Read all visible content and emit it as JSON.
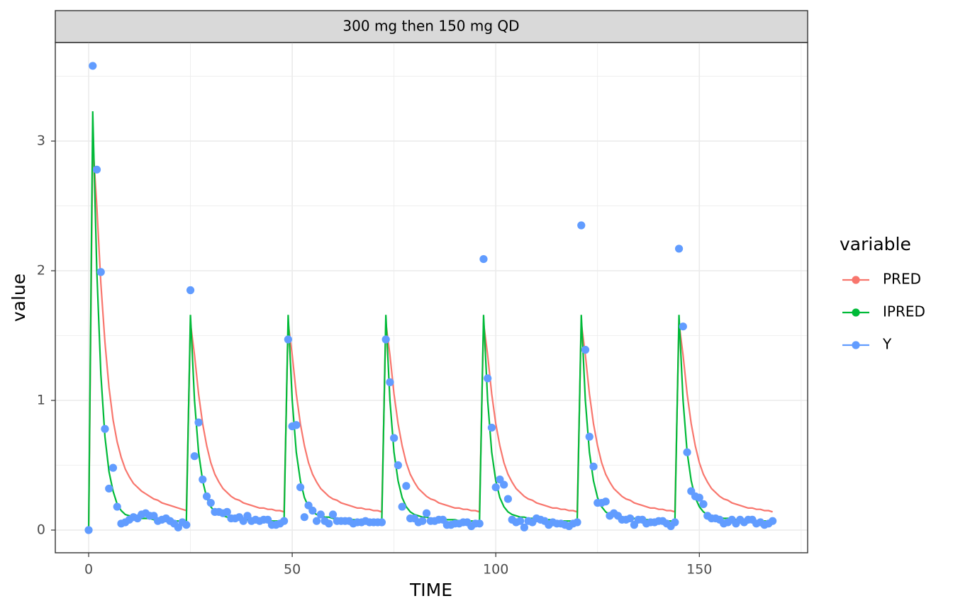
{
  "chart_data": {
    "type": "line",
    "facet_label": "300 mg then 150 mg QD",
    "x_label": "TIME",
    "y_label": "value",
    "legend_title": "variable",
    "legend_position": "right",
    "grid": true,
    "xlim": [
      -8.19,
      176.6
    ],
    "ylim": [
      -0.175,
      3.76
    ],
    "xticks": [
      0,
      50,
      100,
      150
    ],
    "yticks": [
      0,
      1,
      2,
      3
    ],
    "x_minor_breaks": [
      25,
      75,
      125,
      175
    ],
    "y_minor_breaks": [
      0.5,
      1.5,
      2.5,
      3.5
    ],
    "x": [
      0,
      1,
      2,
      3,
      4,
      5,
      6,
      7,
      8,
      9,
      10,
      11,
      12,
      13,
      14,
      15,
      16,
      17,
      18,
      19,
      20,
      21,
      22,
      23,
      24,
      25,
      26,
      27,
      28,
      29,
      30,
      31,
      32,
      33,
      34,
      35,
      36,
      37,
      38,
      39,
      40,
      41,
      42,
      43,
      44,
      45,
      46,
      47,
      48,
      49,
      50,
      51,
      52,
      53,
      54,
      55,
      56,
      57,
      58,
      59,
      60,
      61,
      62,
      63,
      64,
      65,
      66,
      67,
      68,
      69,
      70,
      71,
      72,
      73,
      74,
      75,
      76,
      77,
      78,
      79,
      80,
      81,
      82,
      83,
      84,
      85,
      86,
      87,
      88,
      89,
      90,
      91,
      92,
      93,
      94,
      95,
      96,
      97,
      98,
      99,
      100,
      101,
      102,
      103,
      104,
      105,
      106,
      107,
      108,
      109,
      110,
      111,
      112,
      113,
      114,
      115,
      116,
      117,
      118,
      119,
      120,
      121,
      122,
      123,
      124,
      125,
      126,
      127,
      128,
      129,
      130,
      131,
      132,
      133,
      134,
      135,
      136,
      137,
      138,
      139,
      140,
      141,
      142,
      143,
      144,
      145,
      146,
      147,
      148,
      149,
      150,
      151,
      152,
      153,
      154,
      155,
      156,
      157,
      158,
      159,
      160,
      161,
      162,
      163,
      164,
      165,
      166,
      167,
      168
    ],
    "series": [
      {
        "name": "PRED",
        "color": "#F8766D",
        "mode": "lines",
        "values": [
          0,
          3.0,
          2.5,
          1.9,
          1.45,
          1.1,
          0.85,
          0.68,
          0.56,
          0.47,
          0.41,
          0.36,
          0.33,
          0.3,
          0.28,
          0.26,
          0.24,
          0.23,
          0.21,
          0.2,
          0.19,
          0.18,
          0.17,
          0.16,
          0.15,
          1.6,
          1.35,
          1.05,
          0.82,
          0.65,
          0.52,
          0.43,
          0.37,
          0.32,
          0.29,
          0.26,
          0.24,
          0.23,
          0.21,
          0.2,
          0.19,
          0.18,
          0.17,
          0.17,
          0.16,
          0.16,
          0.15,
          0.15,
          0.14,
          1.6,
          1.35,
          1.05,
          0.82,
          0.65,
          0.52,
          0.43,
          0.37,
          0.32,
          0.29,
          0.26,
          0.24,
          0.23,
          0.21,
          0.2,
          0.19,
          0.18,
          0.17,
          0.17,
          0.16,
          0.16,
          0.15,
          0.15,
          0.14,
          1.6,
          1.35,
          1.05,
          0.82,
          0.65,
          0.52,
          0.43,
          0.37,
          0.32,
          0.29,
          0.26,
          0.24,
          0.23,
          0.21,
          0.2,
          0.19,
          0.18,
          0.17,
          0.17,
          0.16,
          0.16,
          0.15,
          0.15,
          0.14,
          1.6,
          1.35,
          1.05,
          0.82,
          0.65,
          0.52,
          0.43,
          0.37,
          0.32,
          0.29,
          0.26,
          0.24,
          0.23,
          0.21,
          0.2,
          0.19,
          0.18,
          0.17,
          0.17,
          0.16,
          0.16,
          0.15,
          0.15,
          0.14,
          1.6,
          1.35,
          1.05,
          0.82,
          0.65,
          0.52,
          0.43,
          0.37,
          0.32,
          0.29,
          0.26,
          0.24,
          0.23,
          0.21,
          0.2,
          0.19,
          0.18,
          0.17,
          0.17,
          0.16,
          0.16,
          0.15,
          0.15,
          0.14,
          1.6,
          1.35,
          1.05,
          0.82,
          0.65,
          0.52,
          0.43,
          0.37,
          0.32,
          0.29,
          0.26,
          0.24,
          0.23,
          0.21,
          0.2,
          0.19,
          0.18,
          0.17,
          0.17,
          0.16,
          0.16,
          0.15,
          0.15,
          0.14
        ]
      },
      {
        "name": "IPRED",
        "color": "#00BA38",
        "mode": "lines",
        "values": [
          0,
          3.23,
          2.0,
          1.2,
          0.72,
          0.45,
          0.3,
          0.2,
          0.15,
          0.12,
          0.11,
          0.1,
          0.1,
          0.09,
          0.09,
          0.09,
          0.08,
          0.08,
          0.08,
          0.08,
          0.08,
          0.07,
          0.07,
          0.07,
          0.07,
          1.66,
          1.0,
          0.6,
          0.38,
          0.25,
          0.18,
          0.14,
          0.12,
          0.11,
          0.1,
          0.1,
          0.09,
          0.09,
          0.09,
          0.08,
          0.08,
          0.08,
          0.08,
          0.07,
          0.07,
          0.07,
          0.07,
          0.07,
          0.07,
          1.66,
          1.0,
          0.6,
          0.38,
          0.25,
          0.18,
          0.14,
          0.12,
          0.11,
          0.1,
          0.1,
          0.09,
          0.09,
          0.09,
          0.08,
          0.08,
          0.08,
          0.08,
          0.07,
          0.07,
          0.07,
          0.07,
          0.07,
          0.07,
          1.66,
          1.0,
          0.6,
          0.38,
          0.25,
          0.18,
          0.14,
          0.12,
          0.11,
          0.1,
          0.1,
          0.09,
          0.09,
          0.09,
          0.08,
          0.08,
          0.08,
          0.08,
          0.07,
          0.07,
          0.07,
          0.07,
          0.07,
          0.07,
          1.66,
          1.0,
          0.6,
          0.38,
          0.25,
          0.18,
          0.14,
          0.12,
          0.11,
          0.1,
          0.1,
          0.09,
          0.09,
          0.09,
          0.08,
          0.08,
          0.08,
          0.08,
          0.07,
          0.07,
          0.07,
          0.07,
          0.07,
          0.07,
          1.66,
          1.0,
          0.6,
          0.38,
          0.25,
          0.18,
          0.14,
          0.12,
          0.11,
          0.1,
          0.1,
          0.09,
          0.09,
          0.09,
          0.08,
          0.08,
          0.08,
          0.08,
          0.07,
          0.07,
          0.07,
          0.07,
          0.07,
          0.07,
          1.66,
          1.0,
          0.6,
          0.38,
          0.25,
          0.18,
          0.14,
          0.12,
          0.11,
          0.1,
          0.1,
          0.09,
          0.09,
          0.09,
          0.08,
          0.08,
          0.08,
          0.08,
          0.07,
          0.07,
          0.07,
          0.07,
          0.07,
          0.07
        ]
      },
      {
        "name": "Y",
        "color": "#619CFF",
        "mode": "markers",
        "values": [
          0,
          3.58,
          2.78,
          1.99,
          0.78,
          0.32,
          0.48,
          0.18,
          0.05,
          0.06,
          0.08,
          0.1,
          0.09,
          0.12,
          0.13,
          0.11,
          0.11,
          0.07,
          0.08,
          0.09,
          0.07,
          0.05,
          0.02,
          0.06,
          0.04,
          1.85,
          0.57,
          0.83,
          0.39,
          0.26,
          0.21,
          0.14,
          0.14,
          0.13,
          0.14,
          0.09,
          0.09,
          0.1,
          0.07,
          0.11,
          0.07,
          0.08,
          0.07,
          0.08,
          0.08,
          0.04,
          0.04,
          0.05,
          0.07,
          1.47,
          0.8,
          0.81,
          0.33,
          0.1,
          0.19,
          0.15,
          0.07,
          0.12,
          0.07,
          0.05,
          0.12,
          0.07,
          0.07,
          0.07,
          0.07,
          0.05,
          0.06,
          0.06,
          0.07,
          0.06,
          0.06,
          0.06,
          0.06,
          1.47,
          1.14,
          0.71,
          0.5,
          0.18,
          0.34,
          0.09,
          0.09,
          0.06,
          0.07,
          0.13,
          0.07,
          0.07,
          0.08,
          0.08,
          0.04,
          0.04,
          0.05,
          0.05,
          0.06,
          0.06,
          0.03,
          0.05,
          0.05,
          2.09,
          1.17,
          0.79,
          0.33,
          0.39,
          0.35,
          0.24,
          0.08,
          0.06,
          0.07,
          0.02,
          0.07,
          0.06,
          0.09,
          0.08,
          0.07,
          0.04,
          0.06,
          0.05,
          0.05,
          0.04,
          0.03,
          0.05,
          0.06,
          2.35,
          1.39,
          0.72,
          0.49,
          0.21,
          0.21,
          0.22,
          0.11,
          0.13,
          0.11,
          0.08,
          0.08,
          0.09,
          0.04,
          0.08,
          0.08,
          0.05,
          0.06,
          0.06,
          0.07,
          0.07,
          0.05,
          0.03,
          0.06,
          2.17,
          1.57,
          0.6,
          0.3,
          0.26,
          0.25,
          0.2,
          0.11,
          0.09,
          0.09,
          0.08,
          0.05,
          0.06,
          0.08,
          0.05,
          0.08,
          0.06,
          0.08,
          0.08,
          0.05,
          0.06,
          0.04,
          0.05,
          0.07
        ]
      }
    ]
  }
}
